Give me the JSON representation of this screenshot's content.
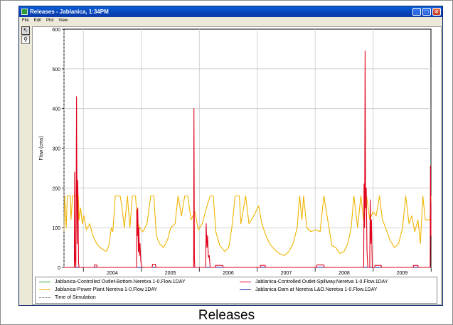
{
  "window": {
    "title": "Releases - Jablanica, 1:34PM",
    "buttons": [
      "_",
      "□",
      "×"
    ]
  },
  "menu": [
    "File",
    "Edit",
    "Plot",
    "View"
  ],
  "tools": [
    {
      "name": "pointer-tool",
      "icon": "arrow-pointer-icon",
      "glyph": "↖",
      "active": true
    },
    {
      "name": "zoom-tool",
      "icon": "magnifier-icon",
      "glyph": "⚲",
      "active": false
    }
  ],
  "figure_caption": "Releases",
  "chart_data": {
    "type": "line",
    "ylabel": "Flow (cms)",
    "ylim": [
      0,
      600
    ],
    "yticks": [
      "0",
      "100",
      "200",
      "300",
      "400",
      "500",
      "600"
    ],
    "xlim": [
      "2003-09-01",
      "2009-12-31"
    ],
    "xticks": [
      "2004",
      "2005",
      "2006",
      "2007",
      "2008",
      "2009"
    ],
    "grid": true,
    "legend_position": "bottom",
    "series": [
      {
        "name": "Jablanica-Controlled Outlet-Bottom.Neretva 1-0.Flow.1DAY",
        "color": "#2eab2e",
        "points": [
          [
            "2003-09-01",
            0
          ],
          [
            "2009-12-31",
            0
          ]
        ]
      },
      {
        "name": "Jablanica-Controlled Outlet-Spillway.Neretva 1-0.Flow.1DAY",
        "color": "#e0001a",
        "points": [
          [
            "2003-09-01",
            0
          ],
          [
            "2003-11-05",
            0
          ],
          [
            "2003-11-07",
            240
          ],
          [
            "2003-11-10",
            20
          ],
          [
            "2003-11-15",
            0
          ],
          [
            "2003-11-19",
            430
          ],
          [
            "2003-11-23",
            60
          ],
          [
            "2003-11-27",
            220
          ],
          [
            "2003-12-02",
            10
          ],
          [
            "2003-12-05",
            0
          ],
          [
            "2004-03-10",
            0
          ],
          [
            "2004-03-12",
            6
          ],
          [
            "2004-03-25",
            6
          ],
          [
            "2004-03-27",
            0
          ],
          [
            "2004-12-01",
            0
          ],
          [
            "2004-12-03",
            145
          ],
          [
            "2004-12-06",
            80
          ],
          [
            "2004-12-09",
            150
          ],
          [
            "2004-12-13",
            40
          ],
          [
            "2004-12-16",
            100
          ],
          [
            "2004-12-19",
            30
          ],
          [
            "2004-12-23",
            60
          ],
          [
            "2004-12-28",
            15
          ],
          [
            "2005-01-05",
            0
          ],
          [
            "2005-03-10",
            0
          ],
          [
            "2005-03-12",
            8
          ],
          [
            "2005-03-30",
            8
          ],
          [
            "2005-04-02",
            0
          ],
          [
            "2005-11-26",
            0
          ],
          [
            "2005-11-28",
            400
          ],
          [
            "2005-12-01",
            20
          ],
          [
            "2005-12-04",
            0
          ],
          [
            "2006-02-10",
            0
          ],
          [
            "2006-02-13",
            110
          ],
          [
            "2006-02-18",
            50
          ],
          [
            "2006-02-22",
            80
          ],
          [
            "2006-02-27",
            25
          ],
          [
            "2006-03-05",
            30
          ],
          [
            "2006-03-10",
            0
          ],
          [
            "2006-04-10",
            0
          ],
          [
            "2006-04-12",
            5
          ],
          [
            "2006-05-28",
            5
          ],
          [
            "2006-06-01",
            0
          ],
          [
            "2007-01-20",
            0
          ],
          [
            "2007-01-22",
            5
          ],
          [
            "2007-02-20",
            5
          ],
          [
            "2007-02-22",
            0
          ],
          [
            "2008-01-10",
            0
          ],
          [
            "2008-01-12",
            6
          ],
          [
            "2008-02-25",
            6
          ],
          [
            "2008-02-27",
            0
          ],
          [
            "2008-11-02",
            0
          ],
          [
            "2008-11-04",
            210
          ],
          [
            "2008-11-08",
            100
          ],
          [
            "2008-11-11",
            545
          ],
          [
            "2008-11-14",
            150
          ],
          [
            "2008-11-18",
            200
          ],
          [
            "2008-11-23",
            40
          ],
          [
            "2008-11-28",
            0
          ],
          [
            "2008-12-10",
            0
          ],
          [
            "2008-12-13",
            170
          ],
          [
            "2008-12-17",
            60
          ],
          [
            "2008-12-21",
            120
          ],
          [
            "2008-12-26",
            0
          ],
          [
            "2009-01-10",
            0
          ],
          [
            "2009-01-12",
            5
          ],
          [
            "2009-02-20",
            5
          ],
          [
            "2009-02-22",
            0
          ],
          [
            "2009-09-10",
            0
          ],
          [
            "2009-09-12",
            5
          ],
          [
            "2009-10-10",
            5
          ],
          [
            "2009-10-12",
            0
          ],
          [
            "2009-12-26",
            0
          ],
          [
            "2009-12-28",
            255
          ],
          [
            "2009-12-31",
            80
          ]
        ]
      },
      {
        "name": "Jablanica-Power Plant.Neretva 1-0.Flow.1DAY",
        "color": "#f0b400",
        "points": [
          [
            "2003-09-01",
            95
          ],
          [
            "2003-09-05",
            180
          ],
          [
            "2003-09-15",
            100
          ],
          [
            "2003-09-22",
            180
          ],
          [
            "2003-10-10",
            180
          ],
          [
            "2003-10-15",
            120
          ],
          [
            "2003-10-25",
            180
          ],
          [
            "2003-11-01",
            180
          ],
          [
            "2003-11-12",
            180
          ],
          [
            "2003-11-30",
            180
          ],
          [
            "2003-12-05",
            120
          ],
          [
            "2003-12-15",
            150
          ],
          [
            "2003-12-25",
            110
          ],
          [
            "2004-01-05",
            130
          ],
          [
            "2004-01-20",
            95
          ],
          [
            "2004-02-10",
            110
          ],
          [
            "2004-03-01",
            80
          ],
          [
            "2004-03-25",
            60
          ],
          [
            "2004-04-15",
            50
          ],
          [
            "2004-05-05",
            45
          ],
          [
            "2004-05-25",
            40
          ],
          [
            "2004-06-10",
            55
          ],
          [
            "2004-06-25",
            100
          ],
          [
            "2004-07-05",
            90
          ],
          [
            "2004-07-20",
            180
          ],
          [
            "2004-08-20",
            180
          ],
          [
            "2004-09-01",
            150
          ],
          [
            "2004-09-15",
            100
          ],
          [
            "2004-10-05",
            180
          ],
          [
            "2004-10-20",
            100
          ],
          [
            "2004-11-05",
            180
          ],
          [
            "2004-11-25",
            180
          ],
          [
            "2004-12-05",
            120
          ],
          [
            "2004-12-20",
            100
          ],
          [
            "2005-01-10",
            90
          ],
          [
            "2005-02-05",
            110
          ],
          [
            "2005-03-01",
            180
          ],
          [
            "2005-03-20",
            180
          ],
          [
            "2005-04-05",
            80
          ],
          [
            "2005-04-25",
            60
          ],
          [
            "2005-05-20",
            50
          ],
          [
            "2005-06-15",
            70
          ],
          [
            "2005-07-05",
            100
          ],
          [
            "2005-08-01",
            110
          ],
          [
            "2005-08-20",
            180
          ],
          [
            "2005-09-10",
            130
          ],
          [
            "2005-10-01",
            180
          ],
          [
            "2005-10-20",
            180
          ],
          [
            "2005-11-10",
            120
          ],
          [
            "2005-12-05",
            140
          ],
          [
            "2005-12-25",
            95
          ],
          [
            "2006-01-20",
            110
          ],
          [
            "2006-02-15",
            150
          ],
          [
            "2006-03-10",
            180
          ],
          [
            "2006-03-30",
            180
          ],
          [
            "2006-04-15",
            90
          ],
          [
            "2006-05-10",
            55
          ],
          [
            "2006-06-10",
            40
          ],
          [
            "2006-07-05",
            50
          ],
          [
            "2006-07-25",
            100
          ],
          [
            "2006-08-15",
            180
          ],
          [
            "2006-09-10",
            180
          ],
          [
            "2006-09-20",
            110
          ],
          [
            "2006-10-20",
            180
          ],
          [
            "2006-11-10",
            110
          ],
          [
            "2006-12-10",
            130
          ],
          [
            "2007-01-10",
            155
          ],
          [
            "2007-01-30",
            110
          ],
          [
            "2007-02-25",
            80
          ],
          [
            "2007-03-20",
            60
          ],
          [
            "2007-04-20",
            45
          ],
          [
            "2007-05-20",
            35
          ],
          [
            "2007-06-20",
            30
          ],
          [
            "2007-07-20",
            40
          ],
          [
            "2007-08-15",
            60
          ],
          [
            "2007-09-10",
            100
          ],
          [
            "2007-09-25",
            180
          ],
          [
            "2007-10-10",
            120
          ],
          [
            "2007-10-20",
            180
          ],
          [
            "2007-11-10",
            100
          ],
          [
            "2007-12-05",
            90
          ],
          [
            "2008-01-05",
            95
          ],
          [
            "2008-02-01",
            90
          ],
          [
            "2008-02-25",
            180
          ],
          [
            "2008-03-20",
            120
          ],
          [
            "2008-04-15",
            55
          ],
          [
            "2008-05-10",
            50
          ],
          [
            "2008-06-05",
            35
          ],
          [
            "2008-07-01",
            40
          ],
          [
            "2008-07-25",
            60
          ],
          [
            "2008-08-15",
            100
          ],
          [
            "2008-09-01",
            180
          ],
          [
            "2008-09-25",
            100
          ],
          [
            "2008-10-15",
            180
          ],
          [
            "2008-11-01",
            120
          ],
          [
            "2008-11-20",
            180
          ],
          [
            "2008-12-10",
            120
          ],
          [
            "2008-12-31",
            140
          ],
          [
            "2009-01-20",
            130
          ],
          [
            "2009-02-10",
            180
          ],
          [
            "2009-02-28",
            120
          ],
          [
            "2009-03-20",
            100
          ],
          [
            "2009-04-15",
            70
          ],
          [
            "2009-05-15",
            50
          ],
          [
            "2009-06-10",
            60
          ],
          [
            "2009-07-05",
            100
          ],
          [
            "2009-07-25",
            180
          ],
          [
            "2009-08-15",
            110
          ],
          [
            "2009-09-01",
            130
          ],
          [
            "2009-09-20",
            90
          ],
          [
            "2009-10-10",
            120
          ],
          [
            "2009-10-25",
            60
          ],
          [
            "2009-11-10",
            180
          ],
          [
            "2009-11-25",
            120
          ],
          [
            "2009-12-15",
            120
          ],
          [
            "2009-12-25",
            120
          ],
          [
            "2009-12-31",
            180
          ]
        ]
      },
      {
        "name": "Jablanica-Dam at Neretva L&O.Neretva 1-0.Flow.1DAY",
        "color": "#1a1aa0",
        "points": [
          [
            "2003-09-01",
            0
          ],
          [
            "2009-12-31",
            0
          ]
        ]
      },
      {
        "name": "Time of Simulation",
        "color": "#8a8a8a",
        "dashed": true,
        "points": [
          [
            "2003-09-01",
            0
          ],
          [
            "2003-09-01",
            600
          ]
        ]
      }
    ]
  }
}
